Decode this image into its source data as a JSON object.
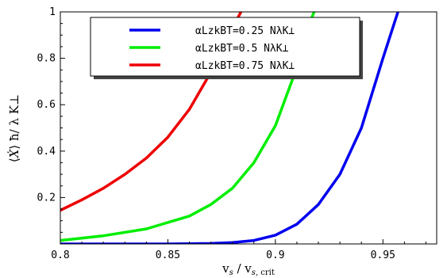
{
  "chart_data": {
    "type": "line",
    "xlabel": "v_s / v_s,crit",
    "ylabel": "⟨Ẋ⟩ ħ/ λ K⊥",
    "xlim": [
      0.8,
      0.975
    ],
    "ylim": [
      0,
      1
    ],
    "x_ticks": [
      "0.8",
      "0.85",
      "0.9",
      "0.95"
    ],
    "y_ticks": [
      "0.2",
      "0.4",
      "0.6",
      "0.8",
      "1"
    ],
    "legend_position": "top-center",
    "series": [
      {
        "name": "αLzkBT=0.25 NλK⊥",
        "color": "#0000ee",
        "points": [
          [
            0.8,
            0.0
          ],
          [
            0.85,
            0.0
          ],
          [
            0.87,
            0.002
          ],
          [
            0.88,
            0.006
          ],
          [
            0.89,
            0.015
          ],
          [
            0.9,
            0.038
          ],
          [
            0.91,
            0.085
          ],
          [
            0.92,
            0.17
          ],
          [
            0.93,
            0.3
          ],
          [
            0.94,
            0.5
          ],
          [
            0.95,
            0.8
          ],
          [
            0.957,
            1.0
          ]
        ]
      },
      {
        "name": "αLzkBT=0.5 NλK⊥",
        "color": "#00ee00",
        "points": [
          [
            0.8,
            0.015
          ],
          [
            0.82,
            0.035
          ],
          [
            0.84,
            0.065
          ],
          [
            0.86,
            0.12
          ],
          [
            0.87,
            0.17
          ],
          [
            0.88,
            0.24
          ],
          [
            0.89,
            0.35
          ],
          [
            0.9,
            0.51
          ],
          [
            0.91,
            0.76
          ],
          [
            0.915,
            0.93
          ],
          [
            0.918,
            1.0
          ]
        ]
      },
      {
        "name": "αLzkBT=0.75 NλK⊥",
        "color": "#ee0000",
        "points": [
          [
            0.8,
            0.145
          ],
          [
            0.81,
            0.19
          ],
          [
            0.82,
            0.24
          ],
          [
            0.83,
            0.3
          ],
          [
            0.84,
            0.37
          ],
          [
            0.85,
            0.46
          ],
          [
            0.86,
            0.58
          ],
          [
            0.87,
            0.74
          ],
          [
            0.88,
            0.93
          ],
          [
            0.884,
            1.0
          ]
        ]
      }
    ]
  }
}
